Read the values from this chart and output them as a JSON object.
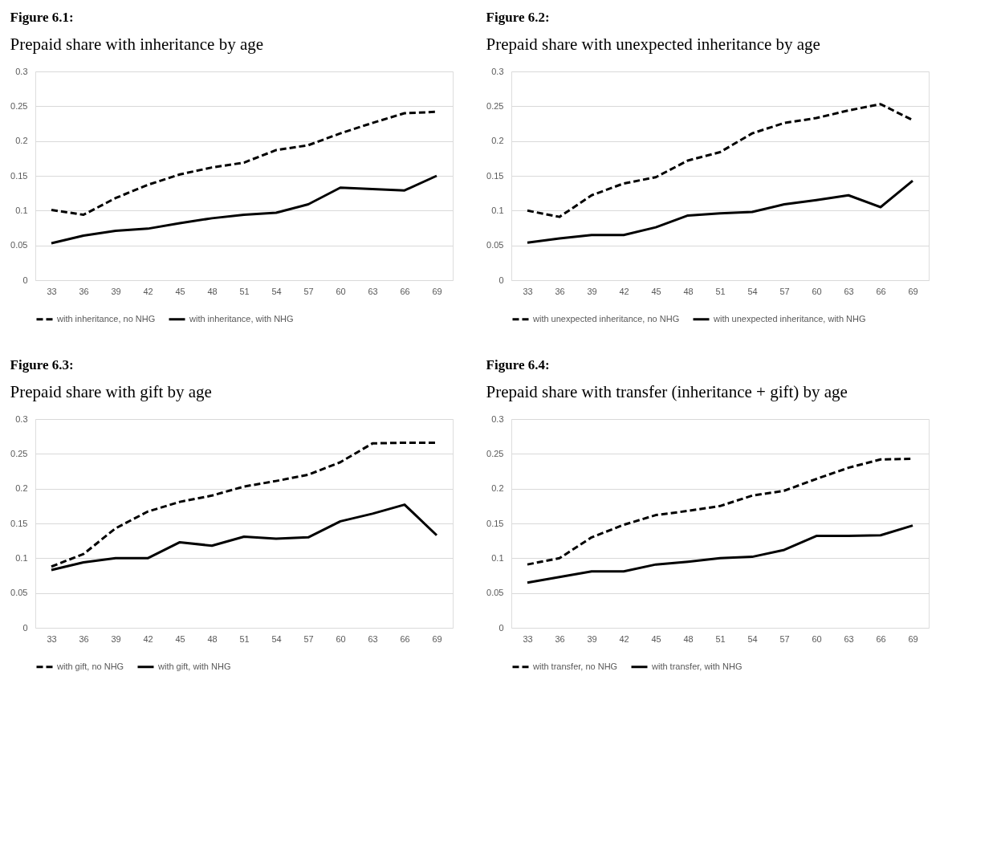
{
  "chart_data": [
    {
      "type": "line",
      "title": "Figure 6.1:",
      "subtitle": "Prepaid share with inheritance by age",
      "categories": [
        "33",
        "36",
        "39",
        "42",
        "45",
        "48",
        "51",
        "54",
        "57",
        "60",
        "63",
        "66",
        "69"
      ],
      "ylim": [
        0,
        0.3
      ],
      "yticks": [
        0,
        0.05,
        0.1,
        0.15,
        0.2,
        0.25,
        0.3
      ],
      "grid": "y",
      "legend": "bottom",
      "marker": "none",
      "series": [
        {
          "name": "with inheritance, no NHG",
          "color": "#000000",
          "line_style": "dashed",
          "values": [
            0.101,
            0.094,
            0.118,
            0.137,
            0.152,
            0.162,
            0.169,
            0.187,
            0.194,
            0.211,
            0.226,
            0.24,
            0.242
          ]
        },
        {
          "name": "with inheritance, with NHG",
          "color": "#000000",
          "line_style": "solid",
          "values": [
            0.053,
            0.064,
            0.071,
            0.074,
            0.082,
            0.089,
            0.094,
            0.097,
            0.109,
            0.133,
            0.131,
            0.129,
            0.15
          ]
        }
      ]
    },
    {
      "type": "line",
      "title": "Figure 6.2:",
      "subtitle": "Prepaid share with unexpected inheritance by age",
      "categories": [
        "33",
        "36",
        "39",
        "42",
        "45",
        "48",
        "51",
        "54",
        "57",
        "60",
        "63",
        "66",
        "69"
      ],
      "ylim": [
        0,
        0.3
      ],
      "yticks": [
        0,
        0.05,
        0.1,
        0.15,
        0.2,
        0.25,
        0.3
      ],
      "grid": "y",
      "legend": "bottom",
      "marker": "none",
      "series": [
        {
          "name": "with unexpected inheritance, no NHG",
          "color": "#000000",
          "line_style": "dashed",
          "values": [
            0.1,
            0.091,
            0.122,
            0.139,
            0.148,
            0.172,
            0.184,
            0.211,
            0.226,
            0.233,
            0.244,
            0.253,
            0.23
          ]
        },
        {
          "name": "with unexpected inheritance, with NHG",
          "color": "#000000",
          "line_style": "solid",
          "values": [
            0.054,
            0.06,
            0.065,
            0.065,
            0.076,
            0.093,
            0.096,
            0.098,
            0.109,
            0.115,
            0.122,
            0.105,
            0.143
          ]
        }
      ]
    },
    {
      "type": "line",
      "title": "Figure 6.3:",
      "subtitle": "Prepaid share with gift by age",
      "categories": [
        "33",
        "36",
        "39",
        "42",
        "45",
        "48",
        "51",
        "54",
        "57",
        "60",
        "63",
        "66",
        "69"
      ],
      "ylim": [
        0,
        0.3
      ],
      "yticks": [
        0,
        0.05,
        0.1,
        0.15,
        0.2,
        0.25,
        0.3
      ],
      "grid": "y",
      "legend": "bottom",
      "marker": "none",
      "series": [
        {
          "name": "with gift, no NHG",
          "color": "#000000",
          "line_style": "dashed",
          "values": [
            0.088,
            0.106,
            0.143,
            0.167,
            0.181,
            0.19,
            0.203,
            0.211,
            0.22,
            0.238,
            0.265,
            0.266,
            0.266
          ]
        },
        {
          "name": "with gift, with NHG",
          "color": "#000000",
          "line_style": "solid",
          "values": [
            0.083,
            0.094,
            0.1,
            0.1,
            0.123,
            0.118,
            0.131,
            0.128,
            0.13,
            0.153,
            0.164,
            0.177,
            0.133
          ]
        }
      ]
    },
    {
      "type": "line",
      "title": "Figure 6.4:",
      "subtitle": "Prepaid share with transfer (inheritance + gift) by age",
      "categories": [
        "33",
        "36",
        "39",
        "42",
        "45",
        "48",
        "51",
        "54",
        "57",
        "60",
        "63",
        "66",
        "69"
      ],
      "ylim": [
        0,
        0.3
      ],
      "yticks": [
        0,
        0.05,
        0.1,
        0.15,
        0.2,
        0.25,
        0.3
      ],
      "grid": "y",
      "legend": "bottom",
      "marker": "none",
      "series": [
        {
          "name": "with transfer, no NHG",
          "color": "#000000",
          "line_style": "dashed",
          "values": [
            0.091,
            0.1,
            0.13,
            0.148,
            0.162,
            0.168,
            0.175,
            0.19,
            0.197,
            0.214,
            0.23,
            0.242,
            0.243
          ]
        },
        {
          "name": "with transfer, with NHG",
          "color": "#000000",
          "line_style": "solid",
          "values": [
            0.065,
            0.073,
            0.081,
            0.081,
            0.091,
            0.095,
            0.1,
            0.102,
            0.112,
            0.132,
            0.132,
            0.133,
            0.147
          ]
        }
      ]
    }
  ]
}
